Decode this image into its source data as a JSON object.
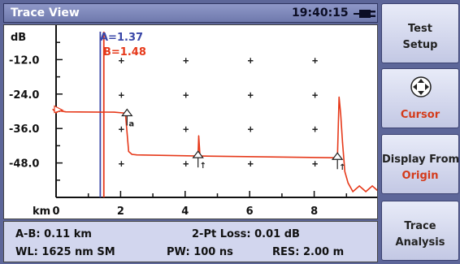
{
  "header": {
    "title": "Trace View",
    "clock": "19:40:15"
  },
  "icons": {
    "battery": "battery-plug-icon",
    "cursor": "four-way-arrows-icon",
    "event": "event-marker-icon"
  },
  "colors": {
    "cursor_a": "#3a47a8",
    "cursor_b": "#e6391a",
    "trace": "#e6391a",
    "softkey_red": "#d43a1a",
    "frame": "#5d6699"
  },
  "plot": {
    "y_unit": "dB",
    "x_unit": "km",
    "y_ticks": [
      "-12.0",
      "-24.0",
      "-36.0",
      "-48.0"
    ],
    "x_ticks": [
      "0",
      "2",
      "4",
      "6",
      "8"
    ],
    "cursor_a_label": "A=1.37",
    "cursor_b_label": "B=1.48"
  },
  "chart_data": {
    "type": "line",
    "xlabel": "km",
    "ylabel": "dB",
    "xlim": [
      0,
      10
    ],
    "ylim": [
      -60,
      0
    ],
    "grid": true,
    "series": [
      {
        "x": [
          -0.1,
          0.0,
          0.1,
          0.3,
          1.8,
          2.1,
          2.15,
          2.25,
          2.35,
          2.5,
          4.4,
          4.42,
          4.46,
          4.5,
          8.6,
          8.72,
          8.77,
          8.82,
          8.88,
          8.95,
          9.05,
          9.2,
          9.4,
          9.6,
          9.8,
          10.0
        ],
        "y": [
          -29.3,
          -30.5,
          -29.8,
          -30.2,
          -30.3,
          -30.6,
          -31.0,
          -44.0,
          -45.0,
          -45.2,
          -45.6,
          -38.5,
          -45.6,
          -45.6,
          -46.2,
          -46.2,
          -25.0,
          -31.0,
          -41.0,
          -51.0,
          -55.0,
          -58.0,
          -56.0,
          -58.0,
          -56.0,
          -58.0
        ]
      }
    ],
    "cursors": [
      {
        "name": "A",
        "x": 1.37
      },
      {
        "name": "B",
        "x": 1.48
      }
    ],
    "event_markers": [
      {
        "x": 2.2,
        "label": "a"
      },
      {
        "x": 4.4,
        "label": "↑"
      },
      {
        "x": 8.72,
        "label": "↑"
      }
    ]
  },
  "info": {
    "ab": "A-B: 0.11 km",
    "loss": "2-Pt Loss: 0.01 dB",
    "wl": "WL: 1625 nm SM",
    "pw": "PW: 100 ns",
    "res": "RES: 2.00 m"
  },
  "softkeys": {
    "test": {
      "line1": "Test",
      "line2": "Setup"
    },
    "cursor": {
      "label": "Cursor"
    },
    "display": {
      "line1": "Display From",
      "line2": "Origin"
    },
    "trace": {
      "line1": "Trace",
      "line2": "Analysis"
    }
  }
}
